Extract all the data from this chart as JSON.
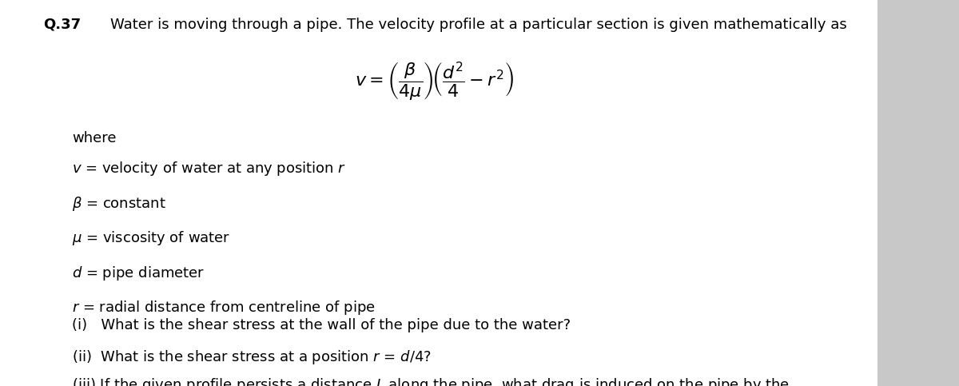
{
  "bg_color": "#c8c8c8",
  "content_bg": "#ffffff",
  "question_number": "Q.37",
  "intro_text": "Water is moving through a pipe. The velocity profile at a particular section is given mathematically as",
  "where_text": "where",
  "font_size_main": 13,
  "text_color": "#000000"
}
